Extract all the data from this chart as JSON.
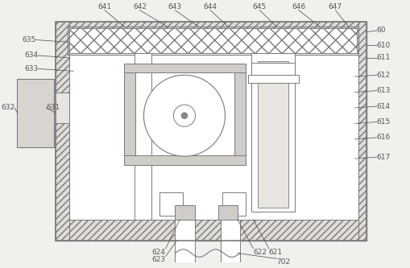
{
  "bg_color": "#f2f0ed",
  "line_color": "#7a7a7a",
  "label_color": "#555555",
  "label_fontsize": 6.5,
  "fig_width": 5.1,
  "fig_height": 3.33,
  "dpi": 100
}
